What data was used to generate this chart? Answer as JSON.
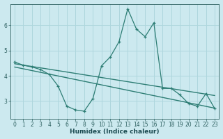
{
  "xlabel": "Humidex (Indice chaleur)",
  "bg_color": "#cce9ef",
  "grid_color": "#aed6dd",
  "line_color": "#2d7d74",
  "xlim": [
    -0.5,
    23.5
  ],
  "ylim": [
    2.3,
    6.85
  ],
  "yticks": [
    3,
    4,
    5,
    6
  ],
  "xticks": [
    0,
    1,
    2,
    3,
    4,
    5,
    6,
    7,
    8,
    9,
    10,
    11,
    12,
    13,
    14,
    15,
    16,
    17,
    18,
    19,
    20,
    21,
    22,
    23
  ],
  "series1_x": [
    0,
    1,
    2,
    3,
    4,
    5,
    6,
    7,
    8,
    9,
    10,
    11,
    12,
    13,
    14,
    15,
    16,
    17,
    18,
    19,
    20,
    21,
    22,
    23
  ],
  "series1_y": [
    4.55,
    4.42,
    4.35,
    4.25,
    4.05,
    3.6,
    2.8,
    2.65,
    2.6,
    3.1,
    4.4,
    4.75,
    5.35,
    6.65,
    5.85,
    5.55,
    6.1,
    3.5,
    3.5,
    3.25,
    2.9,
    2.8,
    3.3,
    2.7
  ],
  "series2_x": [
    0,
    23
  ],
  "series2_y": [
    4.48,
    3.22
  ],
  "series3_x": [
    0,
    23
  ],
  "series3_y": [
    4.35,
    2.72
  ]
}
